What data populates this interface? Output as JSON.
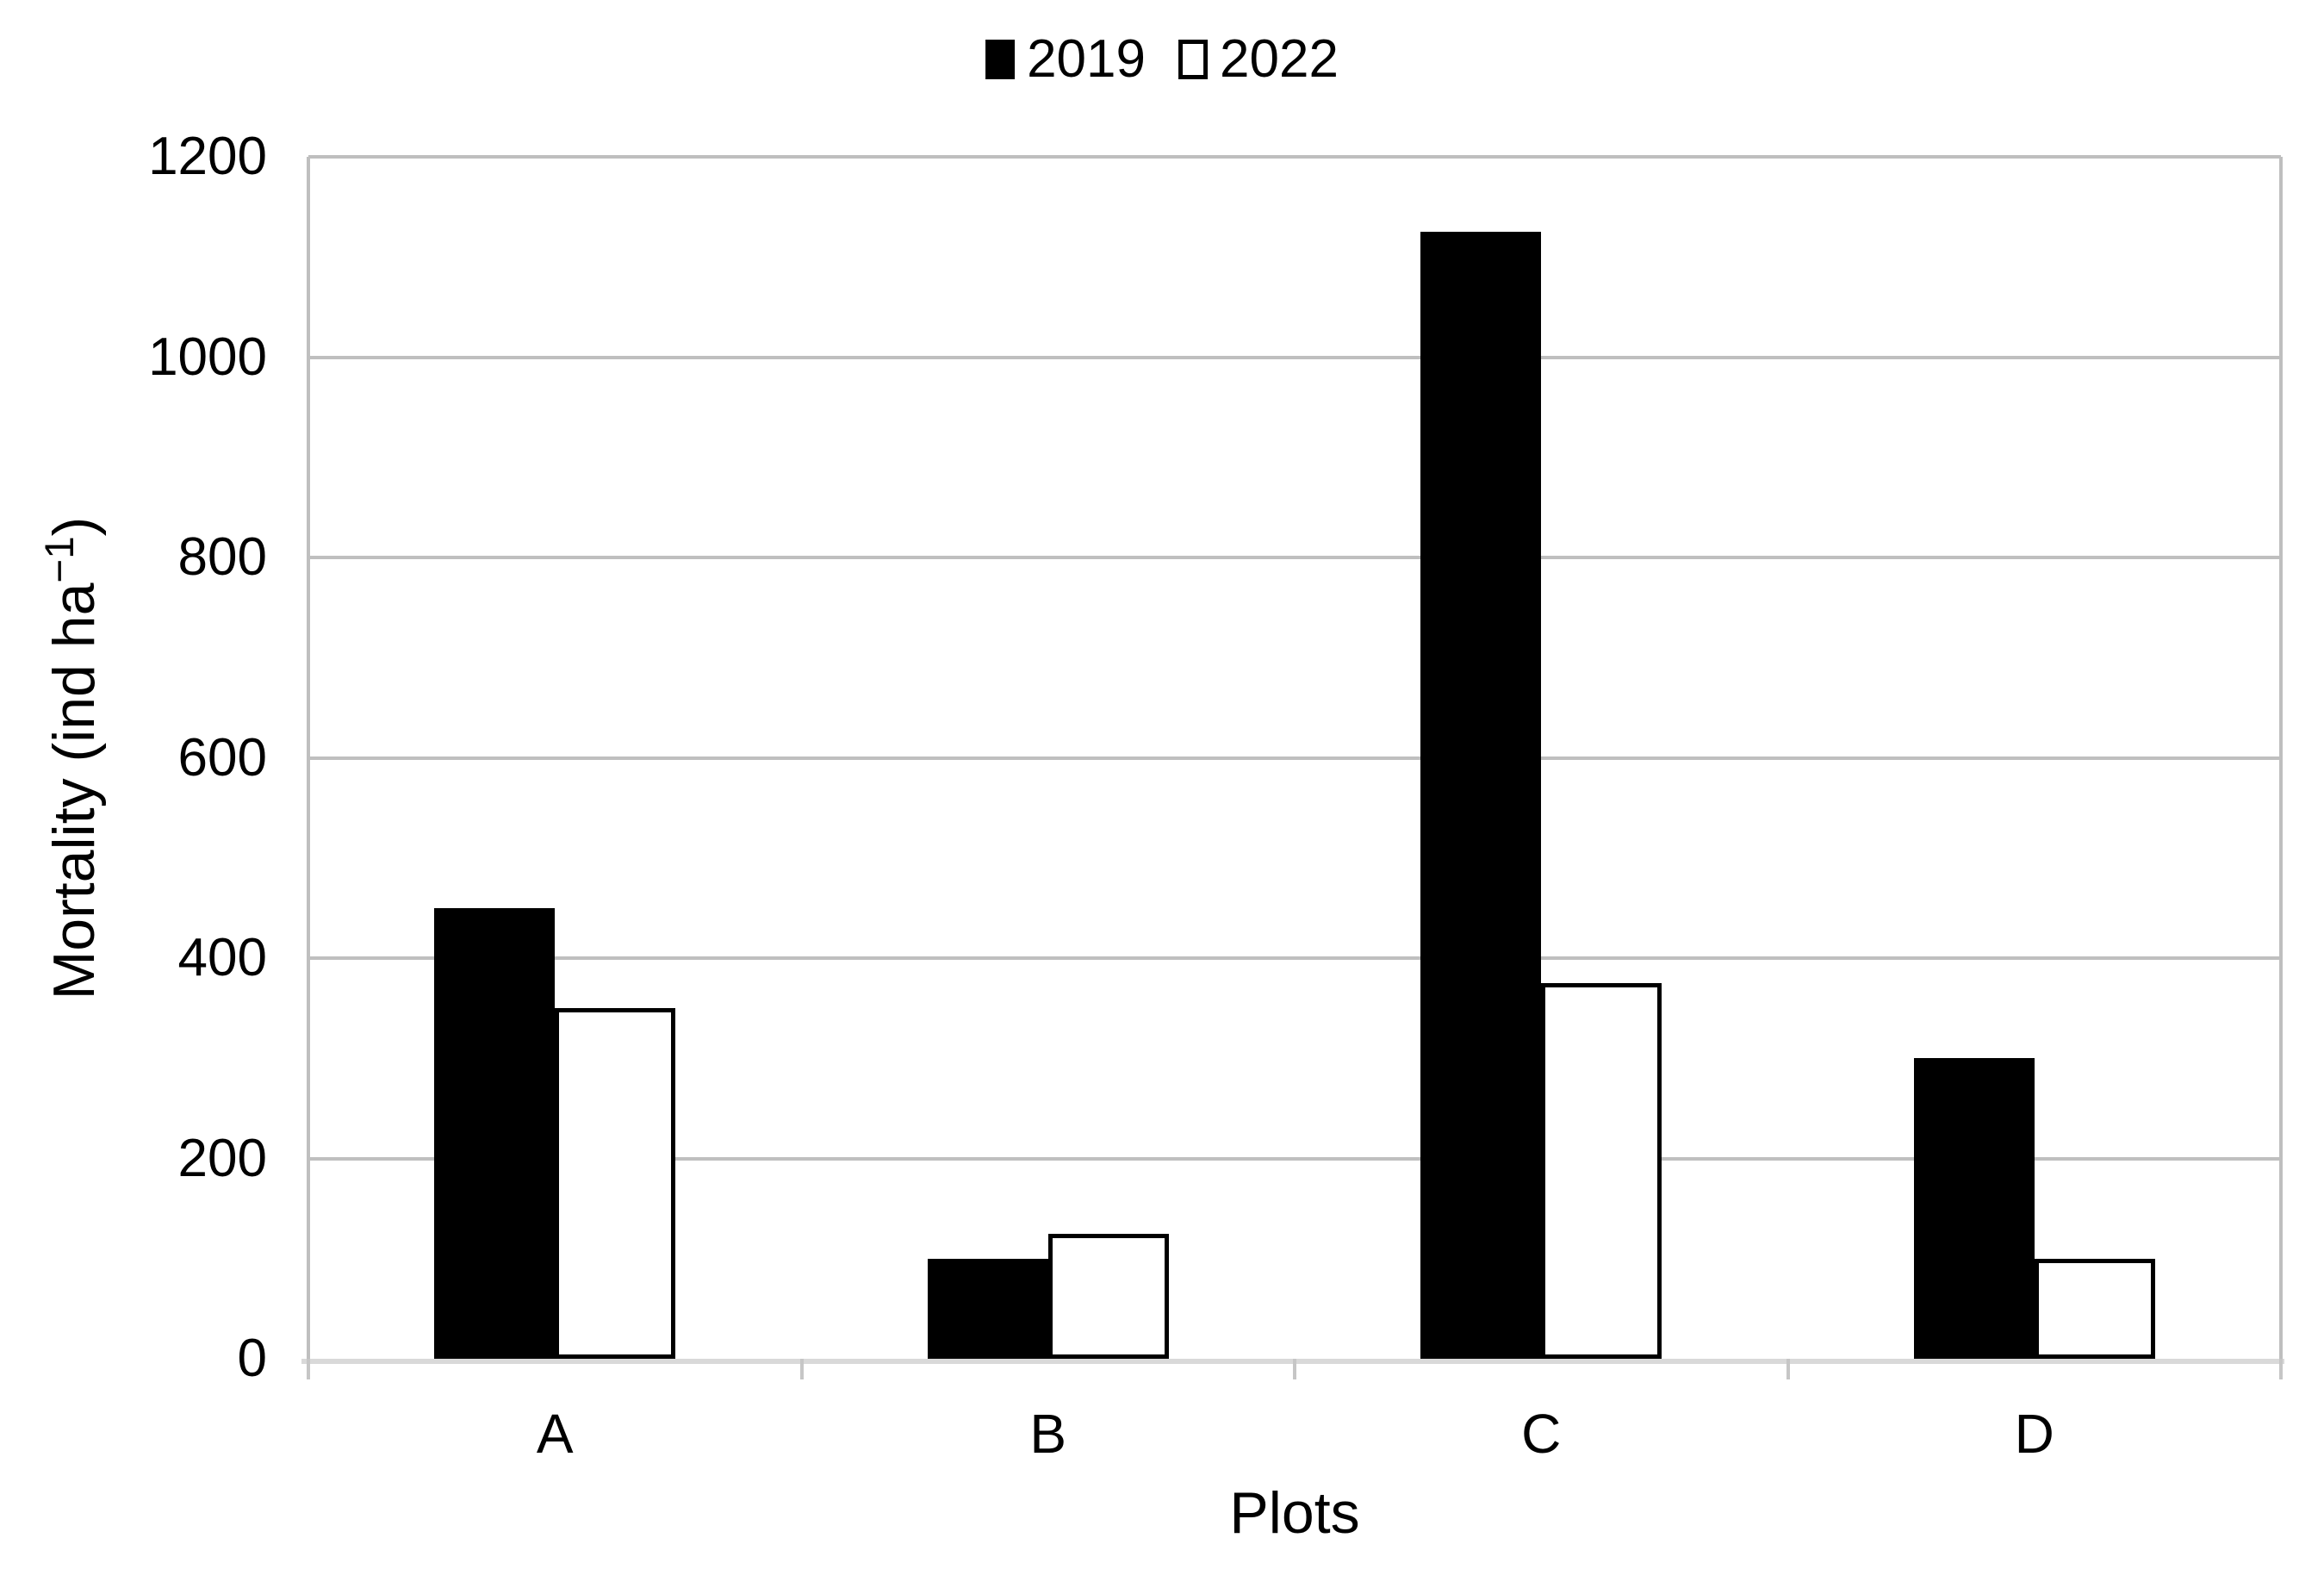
{
  "legend": {
    "items": [
      {
        "label": "2019",
        "fill": "#000000"
      },
      {
        "label": "2022",
        "fill": "#FFFFFF",
        "border": "#000000"
      }
    ]
  },
  "chart_data": {
    "type": "bar",
    "title": "",
    "categories": [
      "A",
      "B",
      "C",
      "D"
    ],
    "series": [
      {
        "name": "2019",
        "fill": "#000000",
        "values": [
          450,
          100,
          1125,
          300
        ]
      },
      {
        "name": "2022",
        "fill": "#FFFFFF",
        "border": "#000000",
        "values": [
          350,
          125,
          375,
          100
        ]
      }
    ],
    "xlabel": "Plots",
    "ylabel": "Mortality (ind ha−1)",
    "ylabel_parts": {
      "pre": "Mortality (ind ha",
      "sup": "−1",
      "post": ")"
    },
    "ylim": [
      0,
      1200
    ],
    "yticks": [
      0,
      200,
      400,
      600,
      800,
      1000,
      1200
    ],
    "grid": true,
    "gridline_color": "#BFBFBF",
    "axis_line_color": "#D9D9D9",
    "legend_position": "top-center"
  }
}
